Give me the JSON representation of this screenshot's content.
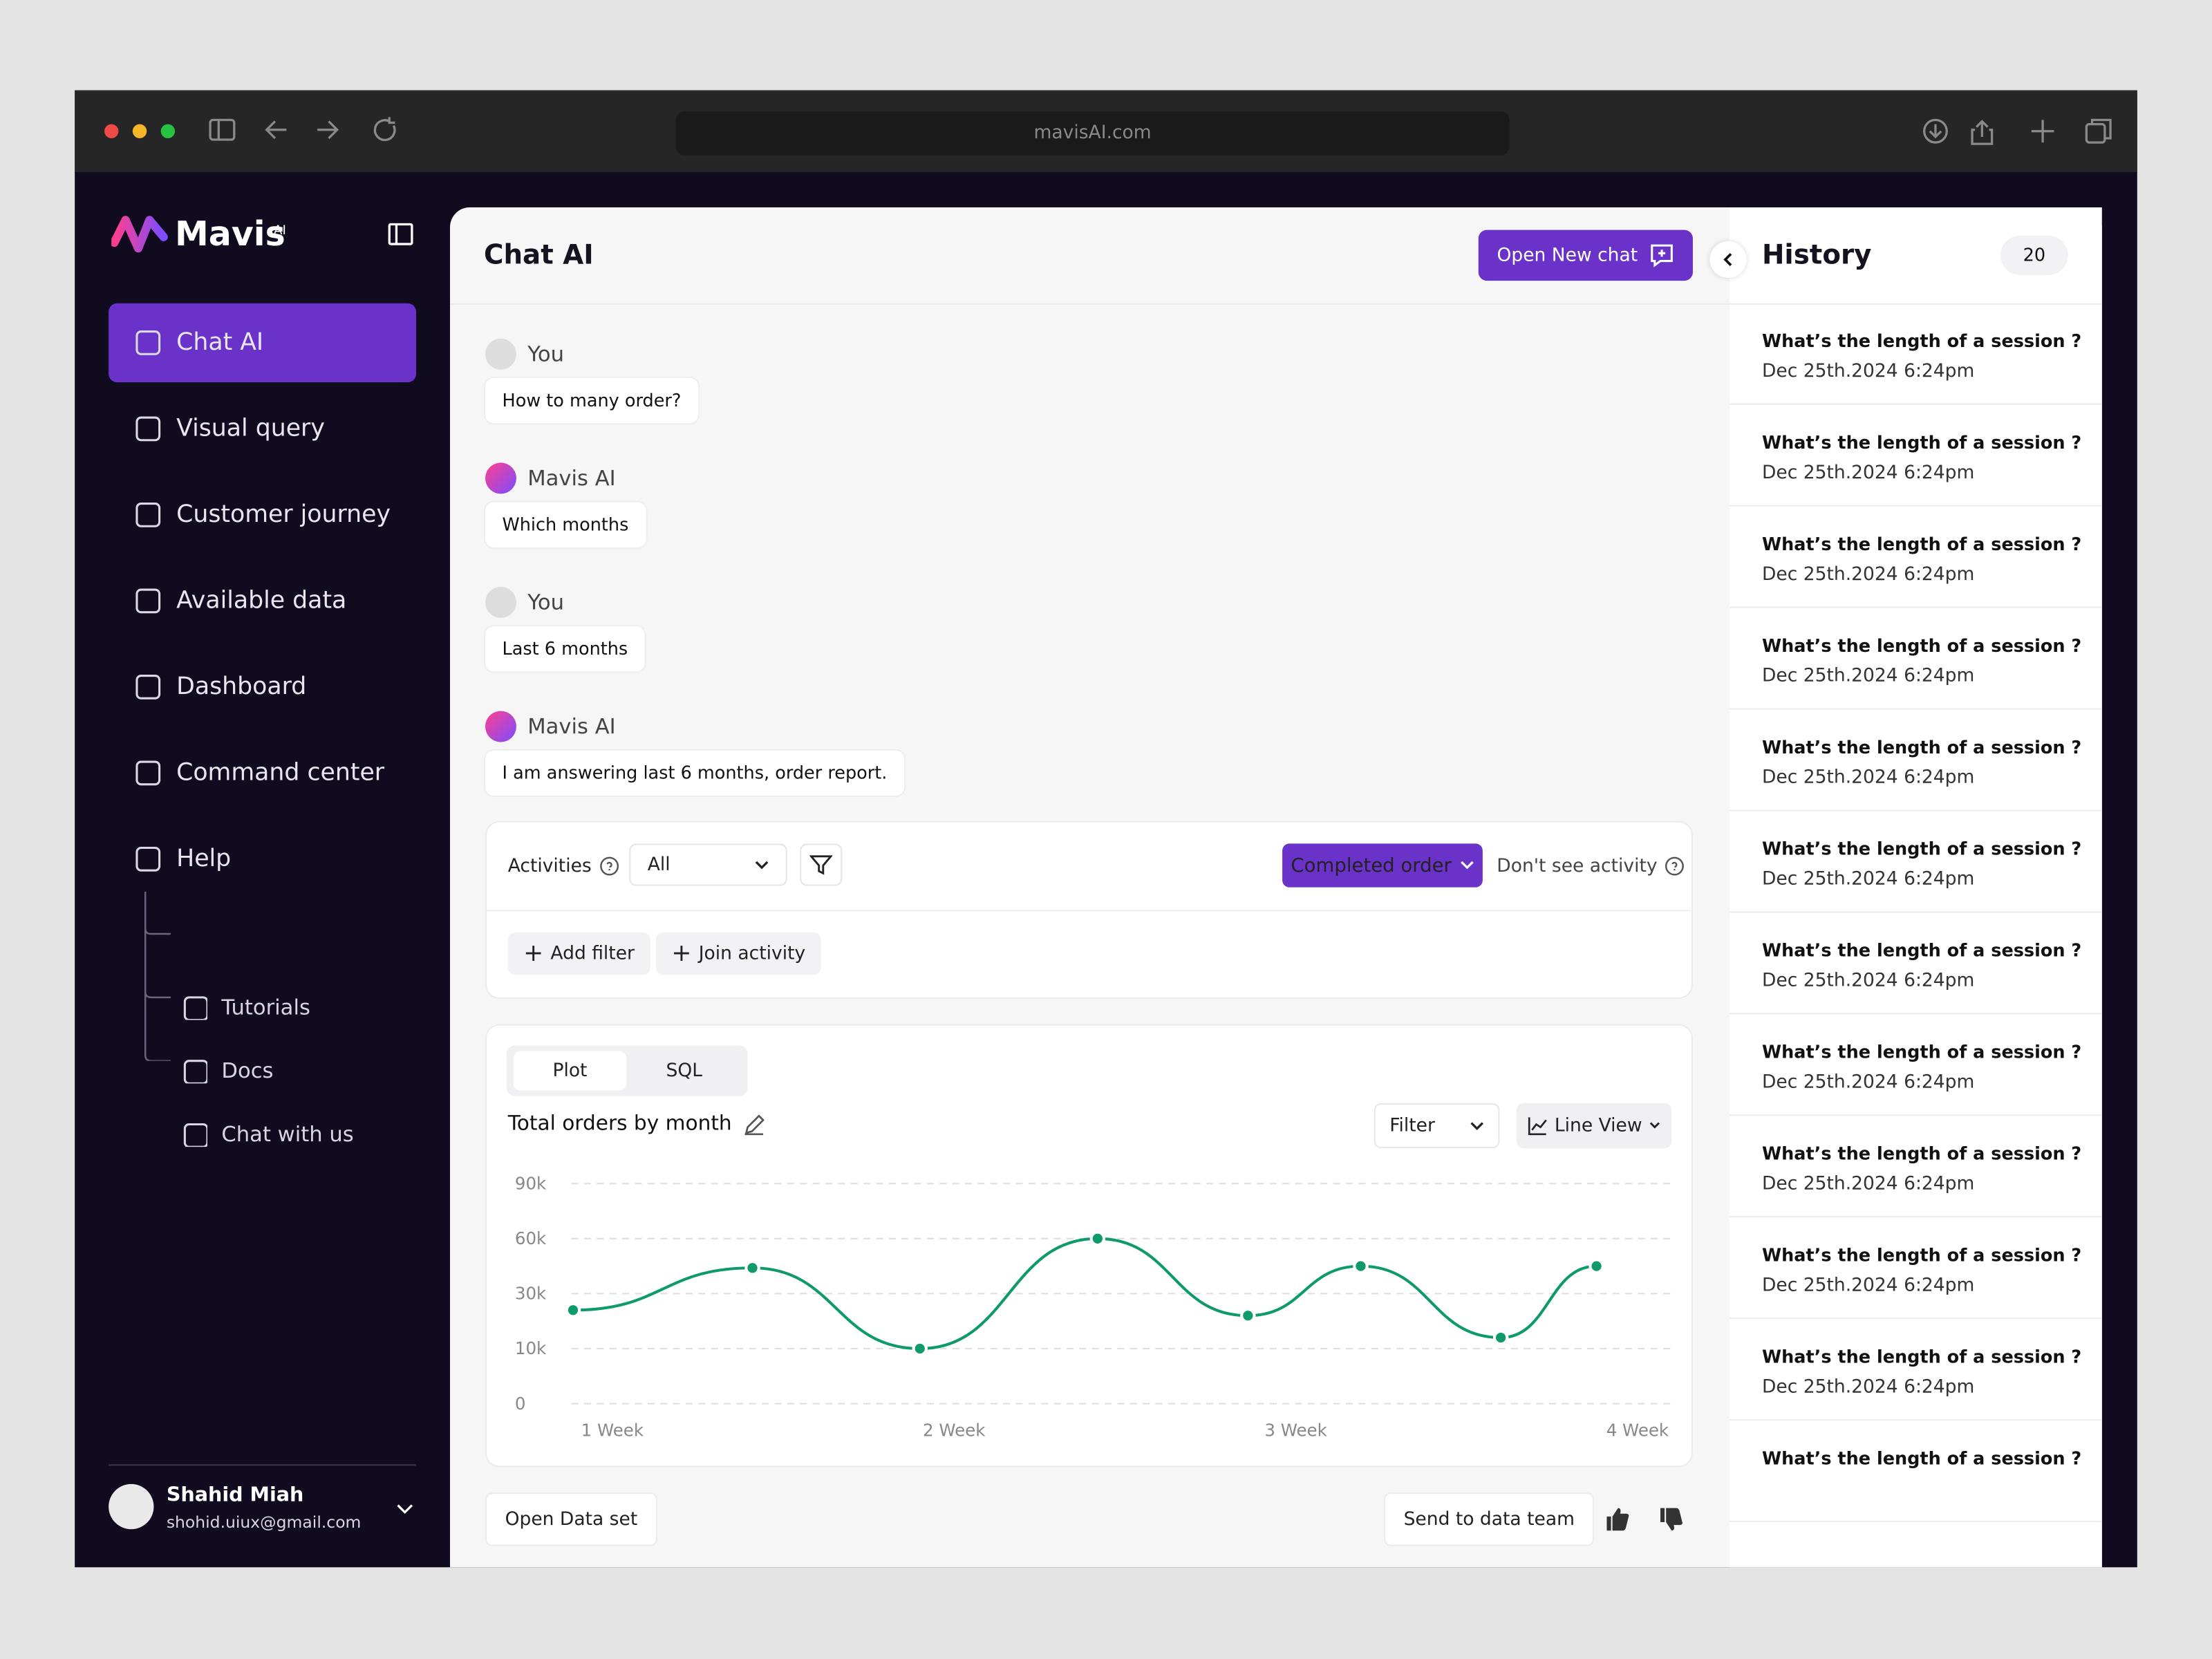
{
  "browser": {
    "url": "mavisAI.com"
  },
  "sidebar": {
    "brand": "Mavis",
    "brand_badge": "AI",
    "nav": [
      "Chat AI",
      "Visual query",
      "Customer journey",
      "Available data",
      "Dashboard",
      "Command center",
      "Help"
    ],
    "help_items": [
      "Tutorials",
      "Docs",
      "Chat with us"
    ],
    "user": {
      "name": "Shahid Miah",
      "email": "shohid.uiux@gmail.com"
    }
  },
  "header": {
    "title": "Chat AI",
    "new_chat": "Open New chat"
  },
  "messages": [
    {
      "author": "You",
      "text": "How to many order?"
    },
    {
      "author": "Mavis AI",
      "text": "Which months"
    },
    {
      "author": "You",
      "text": "Last 6 months"
    },
    {
      "author": "Mavis AI",
      "text": "I am answering last 6 months, order report."
    }
  ],
  "activities": {
    "label": "Activities",
    "select": "All",
    "completed": "Completed order",
    "dont_see": "Don't see activity",
    "add_filter": "Add filter",
    "join_activity": "Join activity"
  },
  "chart_card": {
    "tabs": [
      "Plot",
      "SQL"
    ],
    "filter": "Filter",
    "view": "Line View"
  },
  "chart_data": {
    "type": "line",
    "title": "Total orders by month",
    "x": [
      0.885,
      1.41,
      1.9,
      2.42,
      2.86,
      3.19,
      3.6,
      3.88
    ],
    "series": [
      {
        "color": "#0f9a6c",
        "values": [
          24000,
          44000,
          10000,
          60000,
          22000,
          45000,
          14000,
          45000
        ]
      }
    ],
    "xlim": [
      0.88,
      4.1
    ],
    "xticks": [
      {
        "value": 1,
        "label": "1 Week"
      },
      {
        "value": 2,
        "label": "2 Week"
      },
      {
        "value": 3,
        "label": "3 Week"
      },
      {
        "value": 4,
        "label": "4 Week"
      }
    ],
    "ylim": [
      0,
      90000
    ],
    "yticks": [
      0,
      {
        "value": 10000,
        "label": "10k"
      },
      {
        "value": 30000,
        "label": "30k"
      },
      {
        "value": 60000,
        "label": "60k"
      },
      {
        "value": 90000,
        "label": "90k"
      }
    ],
    "grid": true
  },
  "footer": {
    "open_dataset": "Open Data set",
    "send": "Send to data team"
  },
  "history": {
    "title": "History",
    "count": 20,
    "items": [
      {
        "question": "What’s the length of a session ?",
        "date": "Dec 25th.2024 6:24pm"
      },
      {
        "question": "What’s the length of a session ?",
        "date": "Dec 25th.2024 6:24pm"
      },
      {
        "question": "What’s the length of a session ?",
        "date": "Dec 25th.2024 6:24pm"
      },
      {
        "question": "What’s the length of a session ?",
        "date": "Dec 25th.2024 6:24pm"
      },
      {
        "question": "What’s the length of a session ?",
        "date": "Dec 25th.2024 6:24pm"
      },
      {
        "question": "What’s the length of a session ?",
        "date": "Dec 25th.2024 6:24pm"
      },
      {
        "question": "What’s the length of a session ?",
        "date": "Dec 25th.2024 6:24pm"
      },
      {
        "question": "What’s the length of a session ?",
        "date": "Dec 25th.2024 6:24pm"
      },
      {
        "question": "What’s the length of a session ?",
        "date": "Dec 25th.2024 6:24pm"
      },
      {
        "question": "What’s the length of a session ?",
        "date": "Dec 25th.2024 6:24pm"
      },
      {
        "question": "What’s the length of a session ?",
        "date": "Dec 25th.2024 6:24pm"
      },
      {
        "question": "What’s the length of a session ?"
      }
    ]
  }
}
